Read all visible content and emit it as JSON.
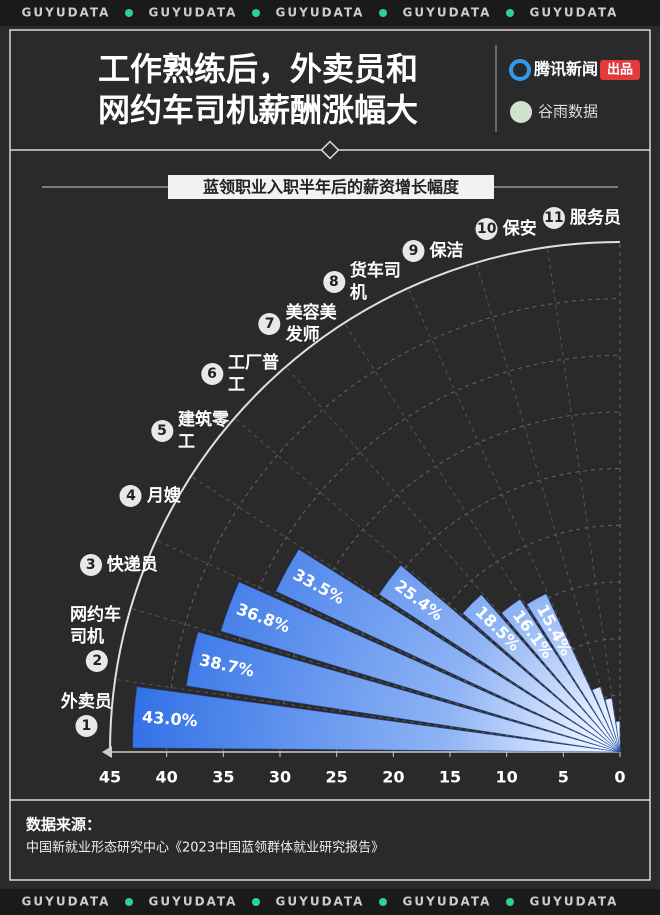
{
  "watermark": "GUYUDATA",
  "header": {
    "title": [
      "工作熟练后，外卖员和",
      "网约车司机薪酬涨幅大"
    ],
    "brand": "腾讯新闻",
    "brand_tag": "出品",
    "partner": "谷雨数据"
  },
  "chart_data": {
    "type": "radial-bar",
    "title": "蓝领职业入职半年后的薪资增长幅度",
    "categories": [
      "外卖员",
      "网约车司机",
      "快递员",
      "月嫂",
      "建筑零工",
      "工厂普工",
      "美容美发师",
      "货车司机",
      "保洁",
      "保安",
      "服务员"
    ],
    "ranks": [
      "1",
      "2",
      "3",
      "4",
      "5",
      "6",
      "7",
      "8",
      "9",
      "10",
      "11"
    ],
    "values": [
      43.0,
      38.7,
      36.8,
      33.5,
      25.4,
      18.5,
      16.1,
      15.4,
      6.0,
      4.8,
      2.7
    ],
    "value_labels": [
      "43.0%",
      "38.7%",
      "36.8%",
      "33.5%",
      "25.4%",
      "18.5%",
      "16.1%",
      "15.4%",
      null,
      null,
      null
    ],
    "color": "#2f6fe6",
    "xlim": [
      0,
      45
    ],
    "xticks": [
      45,
      40,
      35,
      30,
      25,
      20,
      15,
      10,
      5,
      0
    ],
    "grid": true
  },
  "source": {
    "label": "数据来源：",
    "text": "中国新就业形态研究中心《2023中国蓝领群体就业研究报告》"
  }
}
